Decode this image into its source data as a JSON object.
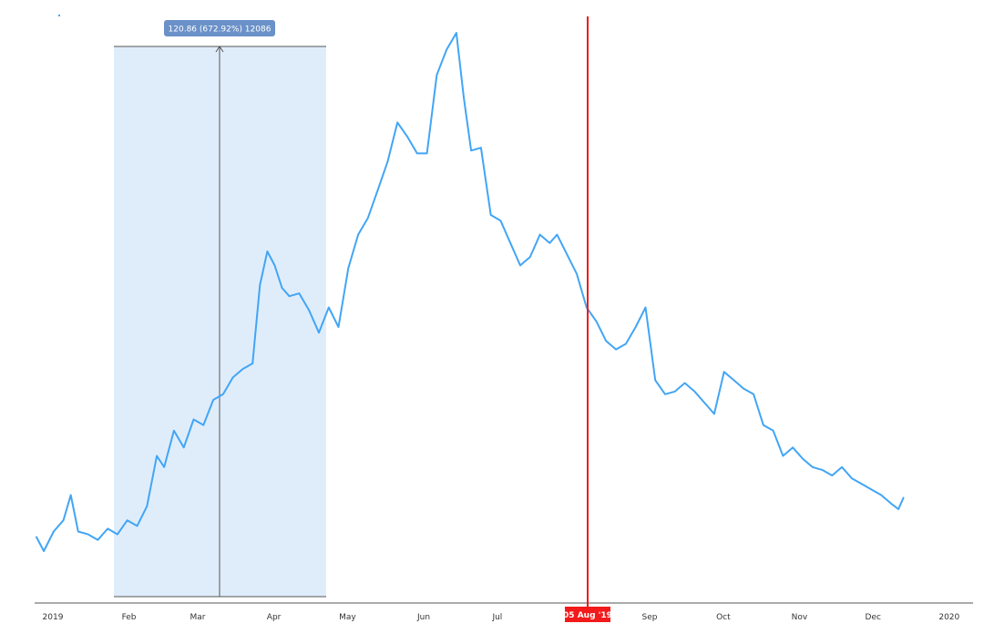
{
  "chart_data": {
    "type": "line",
    "title": "",
    "xlabel": "",
    "ylabel": "",
    "grid": false,
    "x_range": [
      "2019-01-01",
      "2020-01-07"
    ],
    "y_range_unlabeled": [
      0,
      20
    ],
    "tick_labels": [
      "2019",
      "Feb",
      "Mar",
      "Apr",
      "May",
      "Jun",
      "Jul",
      "Aug",
      "Sep",
      "Oct",
      "Nov",
      "Dec",
      "2020"
    ],
    "series": [
      {
        "color": "#42a5f5",
        "x": [
          "2019-01-01",
          "2019-01-04",
          "2019-01-08",
          "2019-01-12",
          "2019-01-15",
          "2019-01-18",
          "2019-01-22",
          "2019-01-26",
          "2019-01-30",
          "2019-02-03",
          "2019-02-07",
          "2019-02-11",
          "2019-02-15",
          "2019-02-19",
          "2019-02-22",
          "2019-02-26",
          "2019-03-02",
          "2019-03-06",
          "2019-03-10",
          "2019-03-14",
          "2019-03-18",
          "2019-03-22",
          "2019-03-26",
          "2019-03-30",
          "2019-04-02",
          "2019-04-05",
          "2019-04-08",
          "2019-04-11",
          "2019-04-14",
          "2019-04-18",
          "2019-04-22",
          "2019-04-26",
          "2019-04-30",
          "2019-05-04",
          "2019-05-08",
          "2019-05-12",
          "2019-05-16",
          "2019-05-20",
          "2019-05-24",
          "2019-05-28",
          "2019-06-01",
          "2019-06-05",
          "2019-06-09",
          "2019-06-13",
          "2019-06-17",
          "2019-06-21",
          "2019-06-24",
          "2019-06-27",
          "2019-07-01",
          "2019-07-05",
          "2019-07-09",
          "2019-07-13",
          "2019-07-17",
          "2019-07-21",
          "2019-07-25",
          "2019-07-29",
          "2019-08-01",
          "2019-08-05",
          "2019-08-09",
          "2019-08-13",
          "2019-08-17",
          "2019-08-21",
          "2019-08-25",
          "2019-08-29",
          "2019-09-02",
          "2019-09-06",
          "2019-09-10",
          "2019-09-14",
          "2019-09-18",
          "2019-09-22",
          "2019-09-26",
          "2019-09-30",
          "2019-10-04",
          "2019-10-08",
          "2019-10-12",
          "2019-10-16",
          "2019-10-20",
          "2019-10-24",
          "2019-10-28",
          "2019-11-01",
          "2019-11-05",
          "2019-11-09",
          "2019-11-13",
          "2019-11-17",
          "2019-11-21",
          "2019-11-25",
          "2019-11-29",
          "2019-12-03",
          "2019-12-07",
          "2019-12-11",
          "2019-12-15",
          "2019-12-18",
          "2019-12-20"
        ],
        "values": [
          1.8,
          1.3,
          2.0,
          2.4,
          3.3,
          2.0,
          1.9,
          1.7,
          2.1,
          1.9,
          2.4,
          2.2,
          2.9,
          4.7,
          4.3,
          5.6,
          5.0,
          6.0,
          5.8,
          6.7,
          6.9,
          7.5,
          7.8,
          8.0,
          10.8,
          12.0,
          11.5,
          10.7,
          10.4,
          10.5,
          9.9,
          9.1,
          10.0,
          9.3,
          11.4,
          12.6,
          13.2,
          14.2,
          15.2,
          16.6,
          16.1,
          15.5,
          15.5,
          18.3,
          19.2,
          19.8,
          17.5,
          15.6,
          15.7,
          13.3,
          13.1,
          12.3,
          11.5,
          11.8,
          12.6,
          12.3,
          12.6,
          11.9,
          11.2,
          10.0,
          9.5,
          8.8,
          8.5,
          8.7,
          9.3,
          10.0,
          7.4,
          6.9,
          7.0,
          7.3,
          7.0,
          6.6,
          6.2,
          7.7,
          7.4,
          7.1,
          6.9,
          5.8,
          5.6,
          4.7,
          5.0,
          4.6,
          4.3,
          4.2,
          4.0,
          4.3,
          3.9,
          3.7,
          3.5,
          3.3,
          3.0,
          2.8,
          3.2
        ]
      }
    ],
    "annotations": {
      "measure_label": "120.86 (672.92%) 12086",
      "crosshair_label": "05 Aug '19"
    },
    "colors": {
      "line": "#42a5f5",
      "range_fill": "#dbebfb",
      "measure_badge": "#6a91c8",
      "crosshair": "#f21a1a"
    }
  }
}
